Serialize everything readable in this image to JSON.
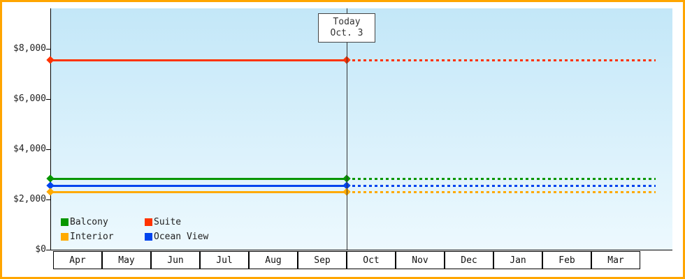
{
  "frame": {
    "border_color": "#ffa500"
  },
  "chart_data": {
    "type": "line",
    "title": "",
    "x_categories": [
      "Apr",
      "May",
      "Jun",
      "Jul",
      "Aug",
      "Sep",
      "Oct",
      "Nov",
      "Dec",
      "Jan",
      "Feb",
      "Mar"
    ],
    "y_axis": {
      "tick_labels": [
        "$0",
        "$2,000",
        "$4,000",
        "$6,000",
        "$8,000"
      ],
      "tick_values": [
        0,
        2000,
        4000,
        6000,
        8000
      ],
      "ylim": [
        0,
        9600
      ]
    },
    "today": {
      "label_lines": [
        "Today",
        "Oct. 3"
      ],
      "after_category": "Sep"
    },
    "series": [
      {
        "name": "Suite",
        "color": "#ff3300",
        "value": 7560
      },
      {
        "name": "Balcony",
        "color": "#089600",
        "value": 2840
      },
      {
        "name": "Ocean View",
        "color": "#0044ee",
        "value": 2560
      },
      {
        "name": "Interior",
        "color": "#ffaa00",
        "value": 2300
      }
    ],
    "legend": {
      "rows": [
        [
          "Balcony",
          "Suite"
        ],
        [
          "Interior",
          "Ocean View"
        ]
      ],
      "position": "bottom-left-inside"
    },
    "style": {
      "solid_before_today": true,
      "dotted_after_today": true,
      "plot_bg_top": "#c3e7f8",
      "plot_bg_bottom": "#edf9fe",
      "axis_color": "#000000",
      "text_color": "#333333"
    }
  }
}
